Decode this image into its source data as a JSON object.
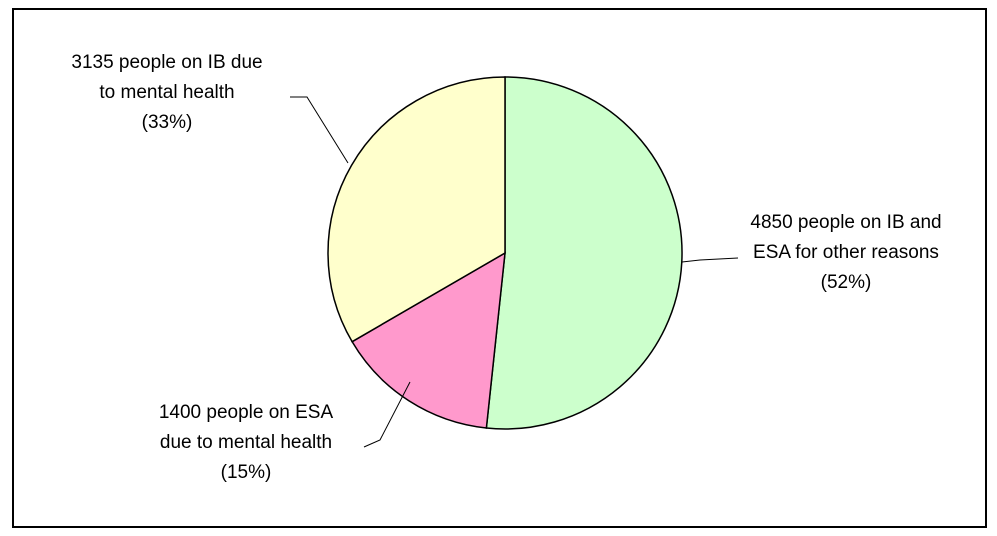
{
  "chart_data": {
    "type": "pie",
    "start_angle_deg": 0,
    "direction": "clockwise",
    "slices": [
      {
        "value": 4850,
        "percent": 52,
        "color": "#CCFFCC",
        "label_lines": [
          "4850 people on IB and",
          "ESA for other reasons",
          "(52%)"
        ]
      },
      {
        "value": 1400,
        "percent": 15,
        "color": "#FF99CC",
        "label_lines": [
          "1400 people on ESA",
          "due to mental health",
          "(15%)"
        ]
      },
      {
        "value": 3135,
        "percent": 33,
        "color": "#FFFFCC",
        "label_lines": [
          "3135 people on IB due",
          "to mental health",
          "(33%)"
        ]
      }
    ]
  }
}
